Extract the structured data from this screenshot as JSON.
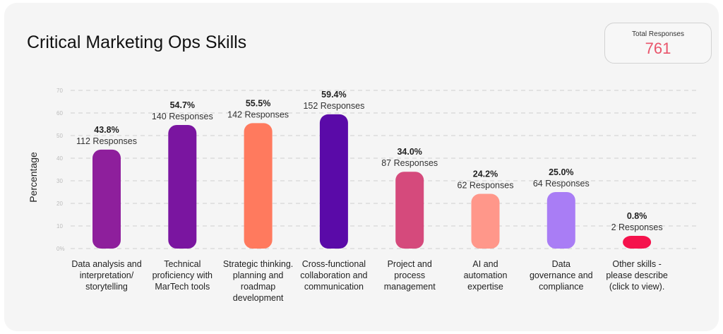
{
  "header": {
    "title": "Critical Marketing Ops Skills",
    "total_label": "Total Responses",
    "total_value": "761"
  },
  "chart_data": {
    "type": "bar",
    "title": "Critical Marketing Ops Skills",
    "ylabel": "Percentage",
    "xlabel": "",
    "ylim": [
      0,
      70
    ],
    "yticks": [
      "0%",
      "10",
      "20",
      "30",
      "40",
      "50",
      "60",
      "70"
    ],
    "grid": true,
    "categories": [
      "Data analysis and interpretation/ storytelling",
      "Technical proficiency with MarTech tools",
      "Strategic thinking. planning and roadmap development",
      "Cross-functional collaboration and communication",
      "Project and process management",
      "AI and automation expertise",
      "Data governance and compliance",
      "Other skills - please describe (click to view)."
    ],
    "category_lines": [
      [
        "Data analysis and",
        "interpretation/",
        "storytelling"
      ],
      [
        "Technical",
        "proficiency with",
        "MarTech tools"
      ],
      [
        "Strategic thinking.",
        "planning and",
        "roadmap",
        "development"
      ],
      [
        "Cross-functional",
        "collaboration and",
        "communication"
      ],
      [
        "Project and",
        "process",
        "management"
      ],
      [
        "AI and",
        "automation",
        "expertise"
      ],
      [
        "Data",
        "governance and",
        "compliance"
      ],
      [
        "Other skills -",
        "please describe",
        "(click to view)."
      ]
    ],
    "values": [
      43.8,
      54.7,
      55.5,
      59.4,
      34.0,
      24.2,
      25.0,
      0.8
    ],
    "value_labels": [
      "43.8%",
      "54.7%",
      "55.5%",
      "59.4%",
      "34.0%",
      "24.2%",
      "25.0%",
      "0.8%"
    ],
    "responses": [
      "112 Responses",
      "140 Responses",
      "142 Responses",
      "152 Responses",
      "87 Responses",
      "62 Responses",
      "64 Responses",
      "2 Responses"
    ],
    "colors": [
      "#8e1f9c",
      "#7a15a0",
      "#ff7a5e",
      "#5a0aa8",
      "#d54a7c",
      "#ff978a",
      "#a97df5",
      "#f5124c"
    ]
  }
}
